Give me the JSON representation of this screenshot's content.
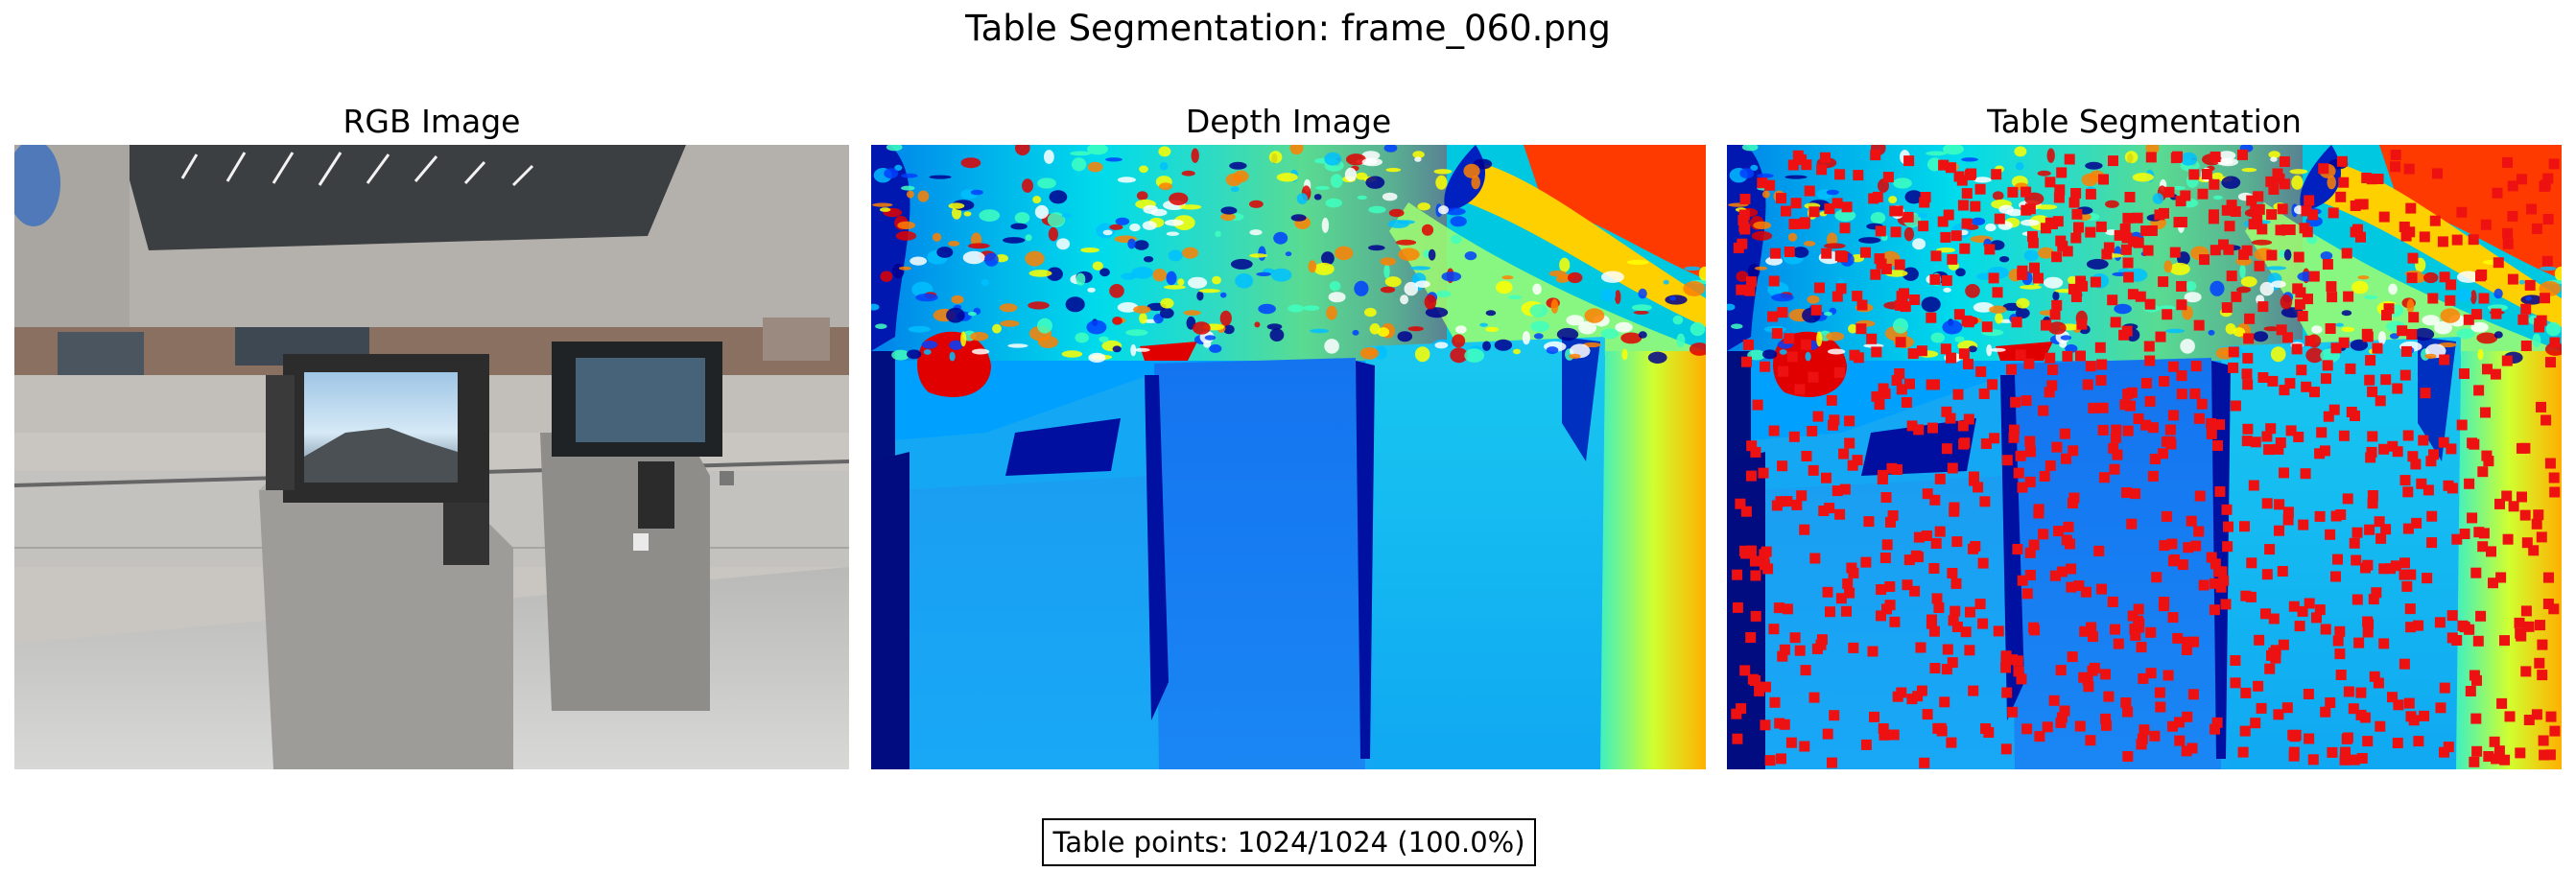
{
  "figure": {
    "title": "Table Segmentation: frame_060.png"
  },
  "panels": [
    {
      "title": "RGB Image"
    },
    {
      "title": "Depth Image"
    },
    {
      "title": "Table Segmentation"
    }
  ],
  "caption": {
    "text": "Table points: 1024/1024 (100.0%)"
  },
  "colors": {
    "point_marker": "#ee1111",
    "depth_near": "#000080",
    "depth_far": "#800000"
  }
}
